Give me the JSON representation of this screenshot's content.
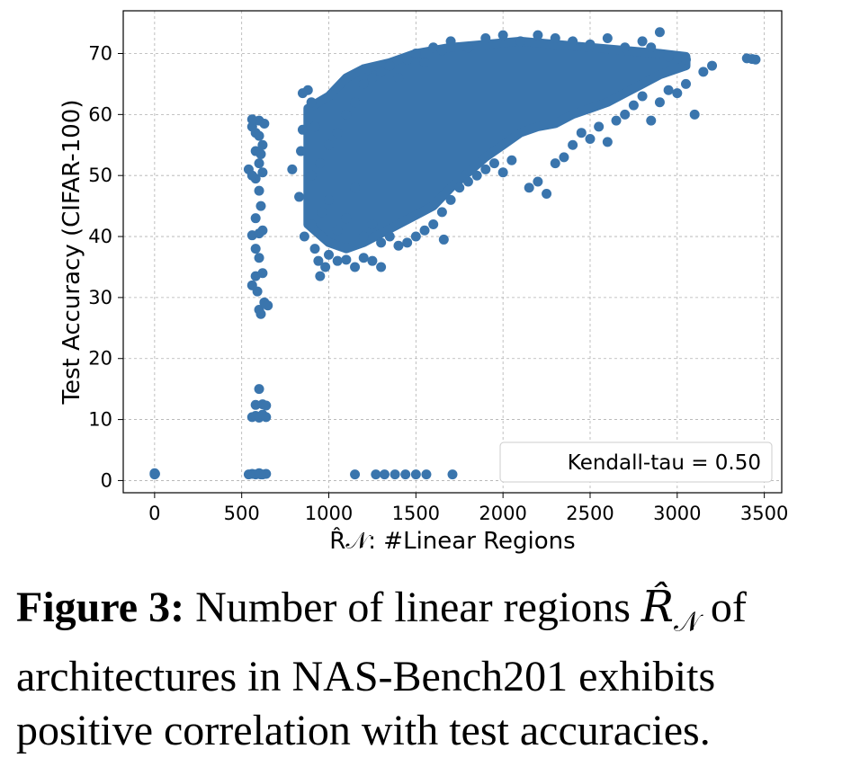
{
  "chart_data": {
    "type": "scatter",
    "xlabel": "R̂𝒩: #Linear Regions",
    "ylabel": "Test Accuracy (CIFAR-100)",
    "xlim": [
      -180,
      3600
    ],
    "ylim": [
      -2,
      77
    ],
    "xticks": [
      0,
      500,
      1000,
      1500,
      2000,
      2500,
      3000,
      3500
    ],
    "yticks": [
      0,
      10,
      20,
      30,
      40,
      50,
      60,
      70
    ],
    "grid": true,
    "legend": {
      "text": "Kendall-tau = 0.50",
      "placement": "bottom-right"
    },
    "marker_color": "#3a75ad",
    "series": [
      {
        "points": [
          [
            0,
            1.0
          ],
          [
            0,
            1.2
          ],
          [
            3,
            1.1
          ],
          [
            540,
            1.0
          ],
          [
            560,
            1.1
          ],
          [
            580,
            1.0
          ],
          [
            600,
            1.2
          ],
          [
            620,
            1.0
          ],
          [
            640,
            1.1
          ],
          [
            610,
            1.0
          ],
          [
            560,
            10.4
          ],
          [
            580,
            10.6
          ],
          [
            600,
            10.3
          ],
          [
            620,
            10.8
          ],
          [
            640,
            10.4
          ],
          [
            580,
            12.4
          ],
          [
            600,
            15.0
          ],
          [
            620,
            12.5
          ],
          [
            640,
            12.3
          ],
          [
            600,
            28.0
          ],
          [
            610,
            27.3
          ],
          [
            630,
            29.2
          ],
          [
            650,
            28.7
          ],
          [
            590,
            31.0
          ],
          [
            560,
            32.0
          ],
          [
            580,
            33.5
          ],
          [
            620,
            34.0
          ],
          [
            600,
            36.5
          ],
          [
            580,
            38.0
          ],
          [
            560,
            40.2
          ],
          [
            600,
            40.5
          ],
          [
            620,
            41.0
          ],
          [
            580,
            43.0
          ],
          [
            610,
            45.0
          ],
          [
            600,
            47.5
          ],
          [
            580,
            49.5
          ],
          [
            620,
            50.5
          ],
          [
            560,
            50.0
          ],
          [
            600,
            52.0
          ],
          [
            540,
            51.0
          ],
          [
            580,
            54.0
          ],
          [
            620,
            55.0
          ],
          [
            600,
            56.5
          ],
          [
            580,
            57.0
          ],
          [
            560,
            58.0
          ],
          [
            600,
            59.0
          ],
          [
            560,
            59.2
          ],
          [
            630,
            58.5
          ],
          [
            610,
            53.5
          ],
          [
            1150,
            1.0
          ],
          [
            1270,
            1.0
          ],
          [
            1320,
            1.0
          ],
          [
            1380,
            1.0
          ],
          [
            1440,
            1.0
          ],
          [
            1500,
            1.0
          ],
          [
            1560,
            1.0
          ],
          [
            1710,
            1.0
          ],
          [
            790,
            51.0
          ],
          [
            830,
            46.5
          ],
          [
            840,
            54.0
          ],
          [
            850,
            57.5
          ],
          [
            850,
            63.5
          ],
          [
            880,
            64.0
          ],
          [
            900,
            62.0
          ],
          [
            920,
            58.0
          ],
          [
            860,
            40.0
          ],
          [
            900,
            42.0
          ],
          [
            920,
            38.0
          ],
          [
            940,
            36.0
          ],
          [
            950,
            33.5
          ],
          [
            980,
            35.0
          ],
          [
            1000,
            37.0
          ],
          [
            1050,
            36.0
          ],
          [
            1100,
            36.2
          ],
          [
            1150,
            35.0
          ],
          [
            1200,
            36.5
          ],
          [
            1250,
            36.0
          ],
          [
            1300,
            35.0
          ],
          [
            960,
            44.0
          ],
          [
            1000,
            46.0
          ],
          [
            1050,
            41.0
          ],
          [
            1100,
            43.0
          ],
          [
            1150,
            48.0
          ],
          [
            1200,
            40.0
          ],
          [
            1250,
            42.0
          ],
          [
            1300,
            39.0
          ],
          [
            1350,
            40.0
          ],
          [
            1400,
            38.5
          ],
          [
            1450,
            39.0
          ],
          [
            1500,
            40.0
          ],
          [
            1550,
            41.0
          ],
          [
            1600,
            42.0
          ],
          [
            1650,
            44.0
          ],
          [
            1660,
            39.5
          ],
          [
            1700,
            46.0
          ],
          [
            1750,
            48.0
          ],
          [
            1800,
            49.0
          ],
          [
            1850,
            50.0
          ],
          [
            1900,
            51.0
          ],
          [
            1950,
            52.0
          ],
          [
            2000,
            50.5
          ],
          [
            2050,
            52.5
          ],
          [
            2150,
            48.0
          ],
          [
            2200,
            49.0
          ],
          [
            2250,
            47.0
          ],
          [
            2300,
            52.0
          ],
          [
            2350,
            53.0
          ],
          [
            2400,
            55.0
          ],
          [
            2450,
            57.0
          ],
          [
            2500,
            56.0
          ],
          [
            2550,
            58.0
          ],
          [
            2600,
            55.5
          ],
          [
            2650,
            59.0
          ],
          [
            2700,
            60.0
          ],
          [
            2750,
            61.5
          ],
          [
            2800,
            63.0
          ],
          [
            2850,
            59.0
          ],
          [
            2900,
            62.0
          ],
          [
            2950,
            64.0
          ],
          [
            3000,
            63.5
          ],
          [
            3050,
            65.0
          ],
          [
            3100,
            60.0
          ],
          [
            3150,
            67.0
          ],
          [
            3200,
            68.0
          ],
          [
            3050,
            69.0
          ],
          [
            2950,
            69.5
          ],
          [
            2850,
            71.0
          ],
          [
            2900,
            73.5
          ],
          [
            2800,
            72.0
          ],
          [
            3400,
            69.2
          ],
          [
            3430,
            69.1
          ],
          [
            3450,
            69.0
          ],
          [
            900,
            50.0
          ],
          [
            950,
            52.0
          ],
          [
            1000,
            55.0
          ],
          [
            1050,
            57.0
          ],
          [
            1100,
            60.0
          ],
          [
            1150,
            62.0
          ],
          [
            1200,
            65.0
          ],
          [
            1250,
            66.0
          ],
          [
            1300,
            67.0
          ],
          [
            1350,
            68.0
          ],
          [
            1400,
            66.0
          ],
          [
            1450,
            69.0
          ],
          [
            1500,
            70.0
          ],
          [
            1550,
            68.5
          ],
          [
            1600,
            71.0
          ],
          [
            1650,
            70.5
          ],
          [
            1700,
            72.0
          ],
          [
            1800,
            71.0
          ],
          [
            1900,
            72.5
          ],
          [
            2000,
            73.0
          ],
          [
            2100,
            72.0
          ],
          [
            2200,
            73.0
          ],
          [
            2300,
            72.5
          ],
          [
            2400,
            72.0
          ],
          [
            2500,
            71.5
          ],
          [
            2600,
            72.5
          ],
          [
            2700,
            71.0
          ]
        ]
      }
    ],
    "dense_band": {
      "x_start": 880,
      "x_end": 3050,
      "upper": [
        [
          880,
          61
        ],
        [
          1000,
          63
        ],
        [
          1100,
          66
        ],
        [
          1200,
          67.5
        ],
        [
          1350,
          68.5
        ],
        [
          1500,
          70
        ],
        [
          1700,
          71
        ],
        [
          1900,
          71.5
        ],
        [
          2100,
          72
        ],
        [
          2300,
          71.5
        ],
        [
          2500,
          71
        ],
        [
          2700,
          70.5
        ],
        [
          2900,
          70
        ],
        [
          3050,
          69.5
        ]
      ],
      "lower": [
        [
          880,
          42
        ],
        [
          1000,
          39
        ],
        [
          1100,
          38
        ],
        [
          1200,
          39
        ],
        [
          1300,
          40.5
        ],
        [
          1400,
          42
        ],
        [
          1500,
          43.5
        ],
        [
          1600,
          45
        ],
        [
          1700,
          48
        ],
        [
          1800,
          50.5
        ],
        [
          1900,
          53
        ],
        [
          2000,
          55
        ],
        [
          2100,
          57
        ],
        [
          2200,
          58
        ],
        [
          2300,
          58.5
        ],
        [
          2400,
          60
        ],
        [
          2500,
          61
        ],
        [
          2600,
          62
        ],
        [
          2700,
          63.5
        ],
        [
          2800,
          65
        ],
        [
          2900,
          66.5
        ],
        [
          3050,
          68
        ]
      ]
    }
  },
  "caption": {
    "label": "Figure 3:",
    "text_before": "Number of linear regions",
    "symbol": "R̂",
    "symbol_sub": "𝒩",
    "text_after": "of architectures in NAS-Bench201 exhibits positive correlation with test accuracies."
  }
}
